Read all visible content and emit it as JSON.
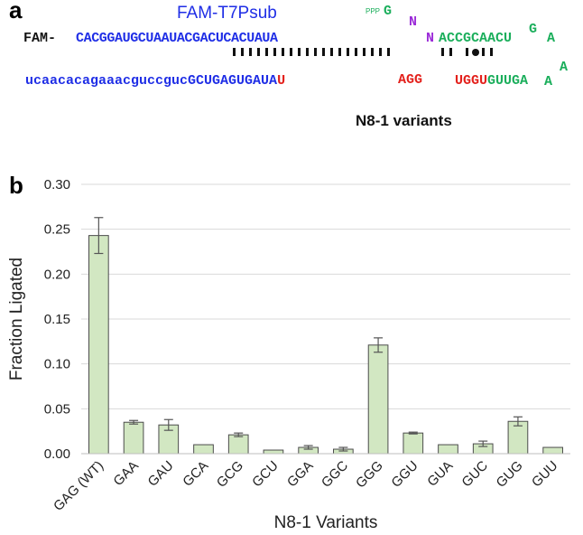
{
  "panel_a": {
    "label": "a",
    "sub_title": "FAM-T7Psub",
    "fam_prefix": "FAM-",
    "top_strand": "CACGGAUGCUAAUACGACUCACUAUA",
    "bottom_lower": "ucaacacagaaacguccguc",
    "bottom_upper": "GCUGAGUGAUA",
    "bottom_u": "U",
    "agg": "AGG",
    "ugg_u": "UGGU",
    "guuga": "GUUGA",
    "ppp": "PPP",
    "g_top": "G",
    "n1": "N",
    "n2": "N",
    "accgcaacu": "ACCGCAACU",
    "loop_g": "G",
    "loop_a1": "A",
    "loop_a2": "A",
    "loop_a3": "A",
    "variants_title": "N8-1 variants",
    "colors": {
      "blue": "#1f2ee6",
      "red": "#e3201b",
      "green": "#1aae5b",
      "purple": "#9b2bd8"
    }
  },
  "panel_b": {
    "label": "b"
  },
  "chart_data": {
    "type": "bar",
    "categories": [
      "GAG (WT)",
      "GAA",
      "GAU",
      "GCA",
      "GCG",
      "GCU",
      "GGA",
      "GGC",
      "GGG",
      "GGU",
      "GUA",
      "GUC",
      "GUG",
      "GUU"
    ],
    "values": [
      0.243,
      0.035,
      0.032,
      0.01,
      0.021,
      0.004,
      0.007,
      0.005,
      0.121,
      0.023,
      0.01,
      0.011,
      0.036,
      0.007
    ],
    "errors": [
      0.02,
      0.002,
      0.006,
      0.0,
      0.002,
      0.0,
      0.002,
      0.002,
      0.008,
      0.001,
      0.0,
      0.003,
      0.005,
      0.0
    ],
    "ylabel": "Fraction Ligated",
    "xlabel": "N8-1 Variants",
    "ylim": [
      0,
      0.3
    ],
    "yticks": [
      "0.00",
      "0.05",
      "0.10",
      "0.15",
      "0.20",
      "0.25",
      "0.30"
    ],
    "grid": true,
    "bar_fill": "#d2e7c2",
    "bar_stroke": "#4c4c4c"
  }
}
